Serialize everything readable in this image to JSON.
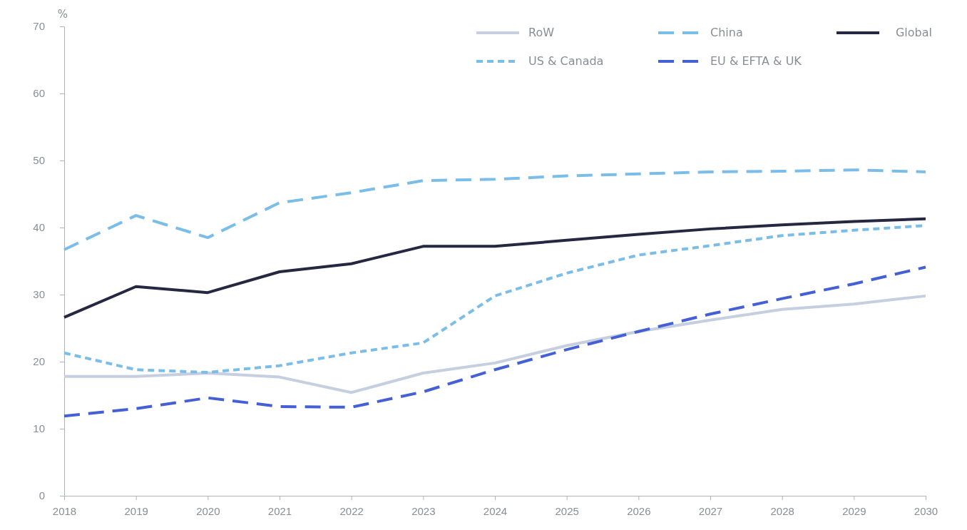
{
  "chart_data": {
    "type": "line",
    "ylabel": "%",
    "x": [
      2018,
      2019,
      2020,
      2021,
      2022,
      2023,
      2024,
      2025,
      2026,
      2027,
      2028,
      2029,
      2030
    ],
    "xlim": [
      2018,
      2030
    ],
    "xticks": [
      2018,
      2019,
      2020,
      2021,
      2022,
      2023,
      2024,
      2025,
      2026,
      2027,
      2028,
      2029,
      2030
    ],
    "ylim": [
      0,
      70
    ],
    "yticks": [
      0,
      10,
      20,
      30,
      40,
      50,
      60,
      70
    ],
    "grid": false,
    "legend": "top right",
    "marker": "none",
    "series": [
      {
        "name": "RoW",
        "color": "#c5cfe0",
        "line_style": "solid",
        "values": [
          17.8,
          17.8,
          18.3,
          17.7,
          15.4,
          18.3,
          19.8,
          22.4,
          24.5,
          26.2,
          27.8,
          28.6,
          29.8
        ]
      },
      {
        "name": "China",
        "color": "#7bbde9",
        "line_style": "dashed",
        "values": [
          36.7,
          41.8,
          38.5,
          43.7,
          45.2,
          47.0,
          47.2,
          47.7,
          48.0,
          48.3,
          48.4,
          48.6,
          48.3
        ]
      },
      {
        "name": "Global",
        "color": "#252840",
        "line_style": "solid",
        "values": [
          26.6,
          31.2,
          30.3,
          33.4,
          34.6,
          37.2,
          37.2,
          38.1,
          39.0,
          39.8,
          40.4,
          40.9,
          41.3
        ]
      },
      {
        "name": "US & Canada",
        "color": "#7bbde9",
        "line_style": "dotted",
        "values": [
          21.3,
          18.8,
          18.4,
          19.4,
          21.3,
          22.8,
          29.8,
          33.2,
          35.9,
          37.3,
          38.8,
          39.6,
          40.3
        ]
      },
      {
        "name": "EU & EFTA & UK",
        "color": "#4460d4",
        "line_style": "dashed",
        "values": [
          11.9,
          13.0,
          14.6,
          13.3,
          13.2,
          15.5,
          18.8,
          21.8,
          24.5,
          27.1,
          29.4,
          31.6,
          34.1
        ]
      }
    ]
  }
}
